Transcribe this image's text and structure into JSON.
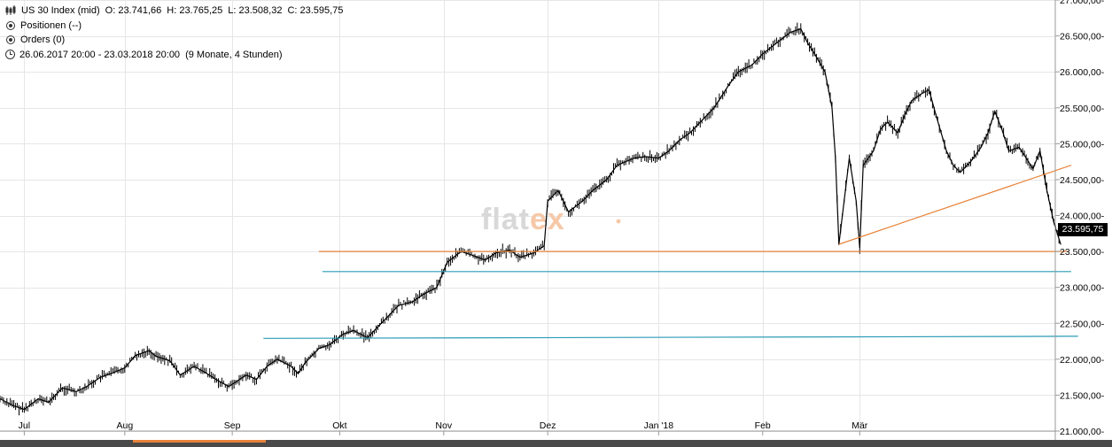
{
  "header": {
    "instrument": "US 30 Index (mid)",
    "open": "O: 23.741,66",
    "high": "H: 23.765,25",
    "low": "L: 23.508,32",
    "close": "C: 23.595,75",
    "positions": "Positionen (--)",
    "orders": "Orders (0)",
    "range": "26.06.2017 20:00 - 23.03.2018 20:00",
    "range_extra": "(9 Monate, 4 Stunden)"
  },
  "watermark": {
    "text": "flatex",
    "color_main": "#d8d8d8",
    "color_accent": "#f6c8a8"
  },
  "last_price_label": "23.595,75",
  "colors": {
    "orange_line": "#e8833a",
    "teal_line": "#2a9bb5",
    "candles": "#000000",
    "grid": "#e6e6e6"
  },
  "chart_data": {
    "type": "line",
    "title": "",
    "xlabel": "",
    "ylabel": "",
    "x_tick_labels": [
      "Jul",
      "Aug",
      "Sep",
      "Okt",
      "Nov",
      "Dez",
      "Jan '18",
      "Feb",
      "Mär"
    ],
    "y_tick_labels": [
      "27.000,00",
      "26.500,00",
      "26.000,00",
      "25.500,00",
      "25.000,00",
      "24.500,00",
      "24.000,00",
      "23.500,00",
      "23.000,00",
      "22.500,00",
      "22.000,00",
      "21.500,00",
      "21.000,00"
    ],
    "y_ticks": [
      27000,
      26500,
      26000,
      25500,
      25000,
      24500,
      24000,
      23500,
      23000,
      22500,
      22000,
      21500,
      21000
    ],
    "ylim": [
      21000,
      27000
    ],
    "xlim": [
      "2017-06-26",
      "2018-04-30"
    ],
    "x_ticks": [
      "2017-07-03",
      "2017-08-01",
      "2017-09-01",
      "2017-10-02",
      "2017-11-01",
      "2017-12-01",
      "2018-01-02",
      "2018-02-01",
      "2018-03-01"
    ],
    "grid": true,
    "series": [
      {
        "points": [
          [
            "2017-06-26",
            21450
          ],
          [
            "2017-06-30",
            21350
          ],
          [
            "2017-07-03",
            21300
          ],
          [
            "2017-07-07",
            21450
          ],
          [
            "2017-07-10",
            21400
          ],
          [
            "2017-07-14",
            21600
          ],
          [
            "2017-07-18",
            21550
          ],
          [
            "2017-07-21",
            21620
          ],
          [
            "2017-07-25",
            21750
          ],
          [
            "2017-07-28",
            21800
          ],
          [
            "2017-08-01",
            21880
          ],
          [
            "2017-08-04",
            22050
          ],
          [
            "2017-08-08",
            22120
          ],
          [
            "2017-08-10",
            22040
          ],
          [
            "2017-08-14",
            21980
          ],
          [
            "2017-08-17",
            21780
          ],
          [
            "2017-08-21",
            21900
          ],
          [
            "2017-08-24",
            21820
          ],
          [
            "2017-08-28",
            21700
          ],
          [
            "2017-08-31",
            21620
          ],
          [
            "2017-09-05",
            21780
          ],
          [
            "2017-09-08",
            21720
          ],
          [
            "2017-09-11",
            21900
          ],
          [
            "2017-09-14",
            22000
          ],
          [
            "2017-09-18",
            21900
          ],
          [
            "2017-09-20",
            21800
          ],
          [
            "2017-09-22",
            21950
          ],
          [
            "2017-09-26",
            22150
          ],
          [
            "2017-09-29",
            22200
          ],
          [
            "2017-10-03",
            22350
          ],
          [
            "2017-10-06",
            22400
          ],
          [
            "2017-10-10",
            22300
          ],
          [
            "2017-10-13",
            22450
          ],
          [
            "2017-10-16",
            22600
          ],
          [
            "2017-10-19",
            22750
          ],
          [
            "2017-10-23",
            22800
          ],
          [
            "2017-10-26",
            22900
          ],
          [
            "2017-10-30",
            23000
          ],
          [
            "2017-11-02",
            23350
          ],
          [
            "2017-11-06",
            23500
          ],
          [
            "2017-11-09",
            23450
          ],
          [
            "2017-11-13",
            23380
          ],
          [
            "2017-11-16",
            23480
          ],
          [
            "2017-11-20",
            23520
          ],
          [
            "2017-11-23",
            23420
          ],
          [
            "2017-11-27",
            23480
          ],
          [
            "2017-11-30",
            23580
          ],
          [
            "2017-12-01",
            24200
          ],
          [
            "2017-12-04",
            24350
          ],
          [
            "2017-12-07",
            24050
          ],
          [
            "2017-12-11",
            24200
          ],
          [
            "2017-12-14",
            24350
          ],
          [
            "2017-12-18",
            24500
          ],
          [
            "2017-12-21",
            24700
          ],
          [
            "2017-12-26",
            24800
          ],
          [
            "2017-12-29",
            24820
          ],
          [
            "2018-01-02",
            24800
          ],
          [
            "2018-01-05",
            24900
          ],
          [
            "2018-01-08",
            25050
          ],
          [
            "2018-01-11",
            25150
          ],
          [
            "2018-01-15",
            25350
          ],
          [
            "2018-01-18",
            25500
          ],
          [
            "2018-01-22",
            25800
          ],
          [
            "2018-01-25",
            26000
          ],
          [
            "2018-01-29",
            26100
          ],
          [
            "2018-02-01",
            26250
          ],
          [
            "2018-02-05",
            26400
          ],
          [
            "2018-02-09",
            26550
          ],
          [
            "2018-02-12",
            26600
          ],
          [
            "2018-02-14",
            26400
          ],
          [
            "2018-02-16",
            26250
          ],
          [
            "2018-02-19",
            26000
          ],
          [
            "2018-02-21",
            25500
          ],
          [
            "2018-02-22",
            24800
          ],
          [
            "2018-02-23",
            23600
          ],
          [
            "2018-02-26",
            24800
          ],
          [
            "2018-02-28",
            24200
          ],
          [
            "2018-03-01",
            23550
          ],
          [
            "2018-03-02",
            24700
          ],
          [
            "2018-03-05",
            24900
          ],
          [
            "2018-03-07",
            25200
          ],
          [
            "2018-03-09",
            25300
          ],
          [
            "2018-03-12",
            25150
          ],
          [
            "2018-03-14",
            25400
          ],
          [
            "2018-03-16",
            25600
          ],
          [
            "2018-03-19",
            25700
          ],
          [
            "2018-03-21",
            25750
          ],
          [
            "2018-03-23",
            25400
          ],
          [
            "2018-03-26",
            24900
          ],
          [
            "2018-03-28",
            24700
          ],
          [
            "2018-03-30",
            24600
          ],
          [
            "2018-04-02",
            24750
          ],
          [
            "2018-04-05",
            24950
          ],
          [
            "2018-04-07",
            25150
          ],
          [
            "2018-04-09",
            25450
          ],
          [
            "2018-04-11",
            25200
          ],
          [
            "2018-04-13",
            24900
          ],
          [
            "2018-04-16",
            24950
          ],
          [
            "2018-04-18",
            24800
          ],
          [
            "2018-04-20",
            24650
          ],
          [
            "2018-04-22",
            24900
          ],
          [
            "2018-04-24",
            24350
          ],
          [
            "2018-04-26",
            23900
          ],
          [
            "2018-04-28",
            23596
          ]
        ]
      }
    ],
    "trend_lines": [
      {
        "color": "orange",
        "from": [
          "2017-09-26",
          23500
        ],
        "to": [
          "2018-04-30",
          23500
        ]
      },
      {
        "color": "orange",
        "from": [
          "2018-02-23",
          23600
        ],
        "to": [
          "2018-05-01",
          24700
        ]
      },
      {
        "color": "teal",
        "from": [
          "2017-09-27",
          23220
        ],
        "to": [
          "2018-05-01",
          23220
        ]
      },
      {
        "color": "teal",
        "from": [
          "2017-09-10",
          22290
        ],
        "to": [
          "2018-05-03",
          22320
        ]
      }
    ]
  }
}
